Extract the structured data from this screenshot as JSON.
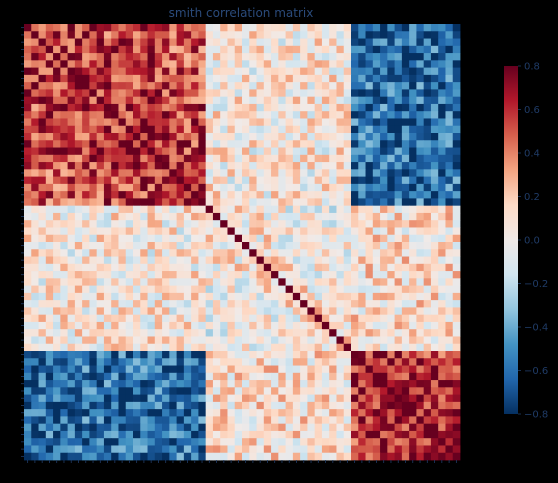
{
  "chart_data": {
    "type": "heatmap",
    "title": "smith correlation matrix",
    "xlabel": "",
    "ylabel": "",
    "n": 60,
    "colorscale": [
      "#053061",
      "#2166ac",
      "#4393c3",
      "#92c5de",
      "#d1e5f0",
      "#f0eae8",
      "#fddbc7",
      "#f4a582",
      "#d6604d",
      "#b2182b",
      "#67001f"
    ],
    "clim": [
      -0.8,
      0.8
    ],
    "colorbar_ticks": [
      0.8,
      0.6,
      0.4,
      0.2,
      0.0,
      -0.2,
      -0.4,
      -0.6,
      -0.8
    ],
    "colorbar_tick_labels": [
      "0.8",
      "0.6",
      "0.4",
      "0.2",
      "0.0",
      "−0.2",
      "−0.4",
      "−0.6",
      "−0.8"
    ],
    "block_structure": {
      "block_a": [
        0,
        25
      ],
      "block_b": [
        25,
        45
      ],
      "block_c": [
        45,
        60
      ],
      "within_a": 0.62,
      "within_b": 0.1,
      "within_c": 0.68,
      "a_vs_b": 0.05,
      "a_vs_c": -0.62,
      "b_vs_c": 0.1,
      "diagonal": 1.0
    },
    "tick_labels_x": [
      "",
      "",
      "",
      "",
      "",
      "",
      "",
      "",
      "",
      "",
      "",
      "",
      "",
      "",
      "",
      "",
      "",
      "",
      "",
      "",
      "",
      "",
      "",
      "",
      "",
      "",
      "",
      "",
      "",
      "",
      "",
      "",
      "",
      "",
      "",
      "",
      "",
      "",
      "",
      "",
      "",
      "",
      "",
      "",
      "",
      "",
      "",
      "",
      "",
      "",
      "",
      "",
      "",
      "",
      "",
      "",
      "",
      "",
      "",
      ""
    ],
    "tick_labels_y": [
      "",
      "",
      "",
      "",
      "",
      "",
      "",
      "",
      "",
      "",
      "",
      "",
      "",
      "",
      "",
      "",
      "",
      "",
      "",
      "",
      "",
      "",
      "",
      "",
      "",
      "",
      "",
      "",
      "",
      "",
      "",
      "",
      "",
      "",
      "",
      "",
      "",
      "",
      "",
      "",
      "",
      "",
      "",
      "",
      "",
      "",
      "",
      "",
      "",
      "",
      "",
      "",
      "",
      "",
      "",
      "",
      "",
      "",
      "",
      ""
    ]
  },
  "colors": {
    "background": "#000000",
    "axis_text": "#1f3b66",
    "title_text": "#2a4a7a"
  }
}
